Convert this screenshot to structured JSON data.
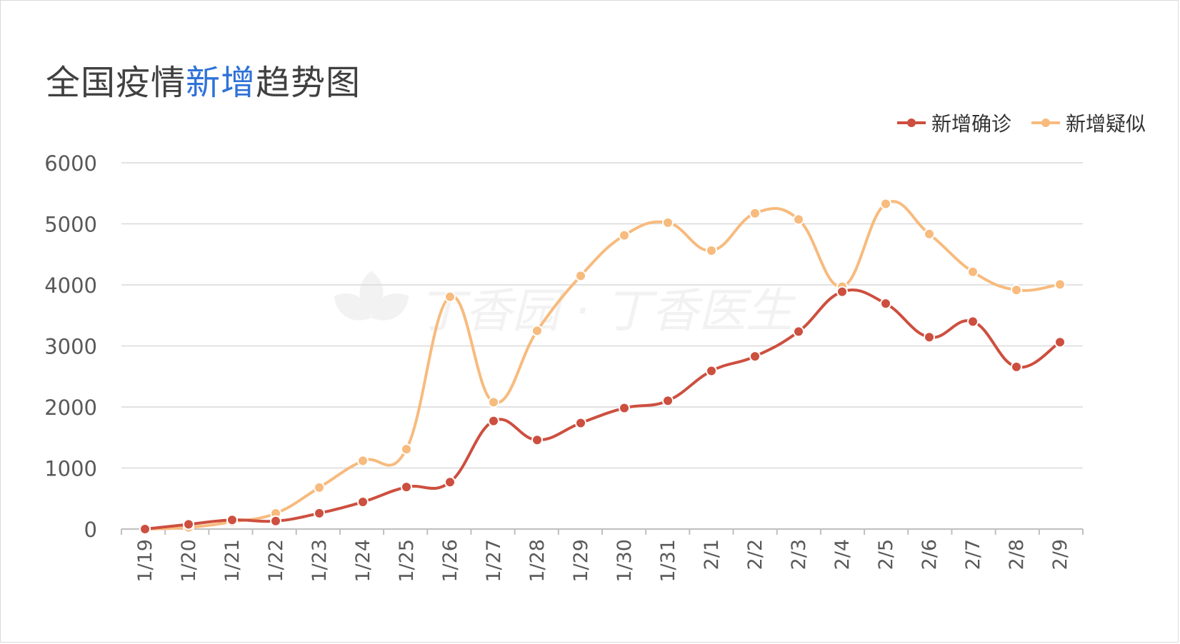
{
  "title": {
    "prefix": "全国疫情",
    "highlight": "新增",
    "suffix": "趋势图",
    "highlight_color": "#2f72d8"
  },
  "watermark": "丁香园 · 丁香医生",
  "chart_data": {
    "type": "line",
    "title": "全国疫情新增趋势图",
    "categories": [
      "1/19",
      "1/20",
      "1/21",
      "1/22",
      "1/23",
      "1/24",
      "1/25",
      "1/26",
      "1/27",
      "1/28",
      "1/29",
      "1/30",
      "1/31",
      "2/1",
      "2/2",
      "2/3",
      "2/4",
      "2/5",
      "2/6",
      "2/7",
      "2/8",
      "2/9"
    ],
    "ylim": [
      0,
      6000
    ],
    "yticks": [
      "0",
      "1000",
      "2000",
      "3000",
      "4000",
      "5000",
      "6000"
    ],
    "grid": true,
    "legend_position": "top-right",
    "series": [
      {
        "name": "新增确诊",
        "color": "#cd4f3f",
        "values": [
          0,
          77,
          149,
          131,
          259,
          444,
          688,
          769,
          1771,
          1459,
          1737,
          1982,
          2102,
          2590,
          2829,
          3235,
          3887,
          3694,
          3143,
          3399,
          2656,
          3062
        ]
      },
      {
        "name": "新增疑似",
        "color": "#f7bb7e",
        "values": [
          0,
          27,
          118,
          257,
          680,
          1118,
          1309,
          3806,
          2077,
          3248,
          4148,
          4812,
          5019,
          4562,
          5173,
          5072,
          3971,
          5328,
          4833,
          4214,
          3916,
          4008
        ]
      }
    ]
  }
}
